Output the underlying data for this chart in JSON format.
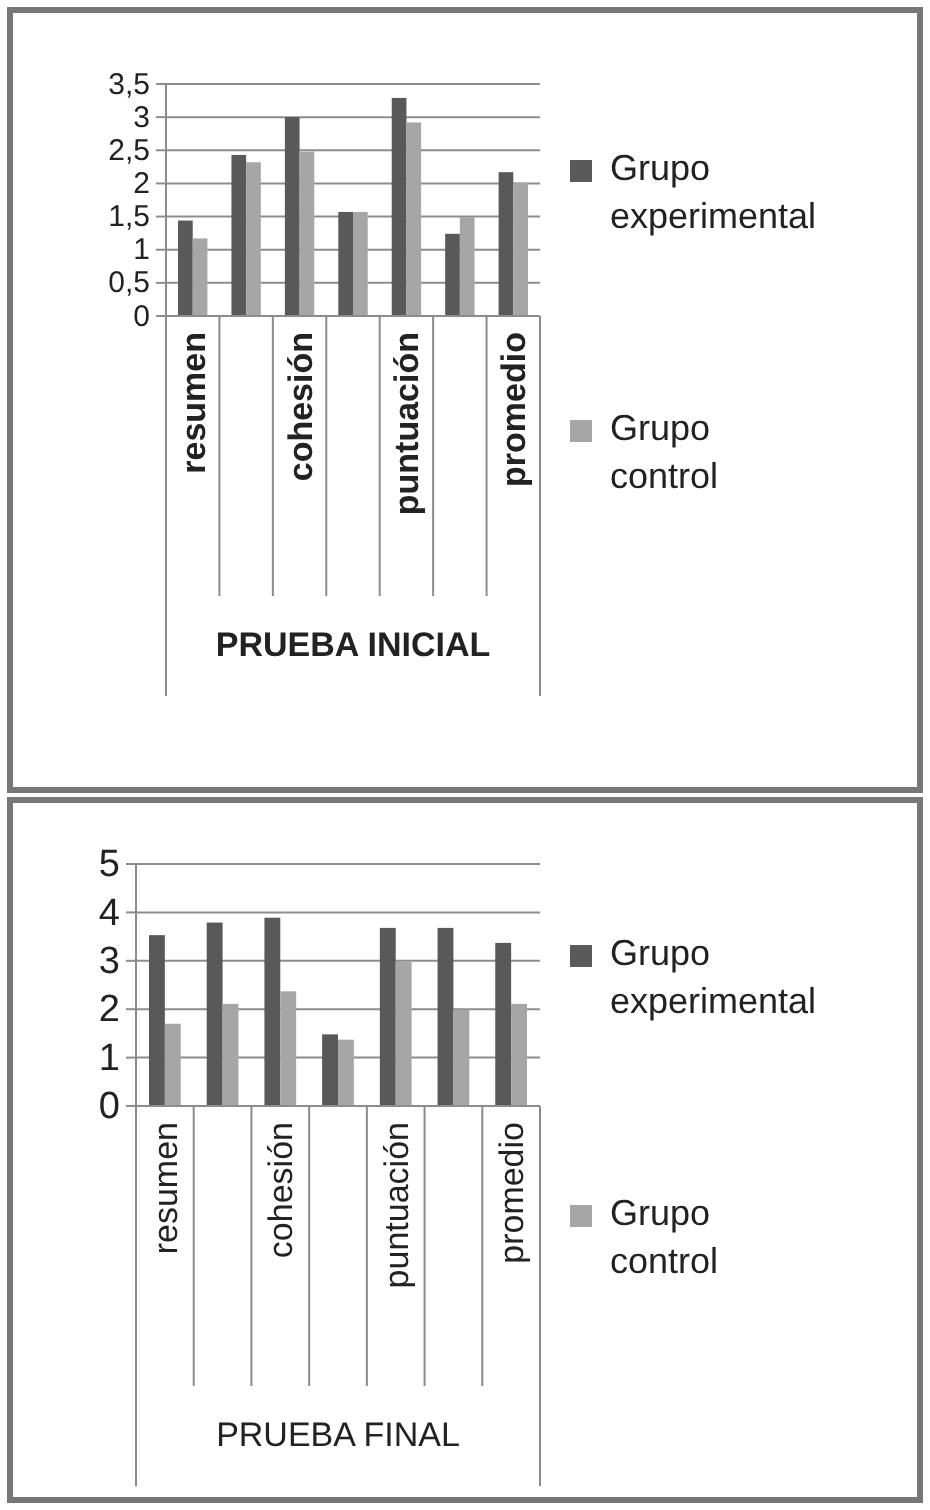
{
  "chart_data": [
    {
      "type": "bar",
      "xlabel": "PRUEBA INICIAL",
      "categories": [
        "resumen",
        null,
        "cohesión",
        null,
        "puntuación",
        null,
        "promedio"
      ],
      "series": [
        {
          "name": "Grupo experimental",
          "color": "#595959",
          "values": [
            1.44,
            2.43,
            3.0,
            1.57,
            3.29,
            1.24,
            2.17
          ]
        },
        {
          "name": "Grupo control",
          "color": "#a6a6a6",
          "values": [
            1.17,
            2.32,
            2.48,
            1.57,
            2.92,
            1.49,
            2.01
          ]
        }
      ],
      "ylim": [
        0,
        3.5
      ],
      "yticks": [
        0,
        {
          "value": 0.5,
          "label": "0,5"
        },
        1,
        {
          "value": 1.5,
          "label": "1,5"
        },
        2,
        {
          "value": 2.5,
          "label": "2,5"
        },
        3,
        {
          "value": 3.5,
          "label": "3,5"
        }
      ],
      "grid": "y",
      "legend": "right"
    },
    {
      "type": "bar",
      "xlabel": "PRUEBA FINAL",
      "categories": [
        "resumen",
        null,
        "cohesión",
        null,
        "puntuación",
        null,
        "promedio"
      ],
      "series": [
        {
          "name": "Grupo experimental",
          "color": "#595959",
          "values": [
            3.53,
            3.79,
            3.89,
            1.48,
            3.68,
            3.68,
            3.37
          ]
        },
        {
          "name": "Grupo control",
          "color": "#a6a6a6",
          "values": [
            1.7,
            2.11,
            2.37,
            1.37,
            2.99,
            1.99,
            2.11
          ]
        }
      ],
      "ylim": [
        0,
        5
      ],
      "yticks": [
        0,
        1,
        2,
        3,
        4,
        5
      ],
      "grid": "y",
      "legend": "right"
    }
  ]
}
